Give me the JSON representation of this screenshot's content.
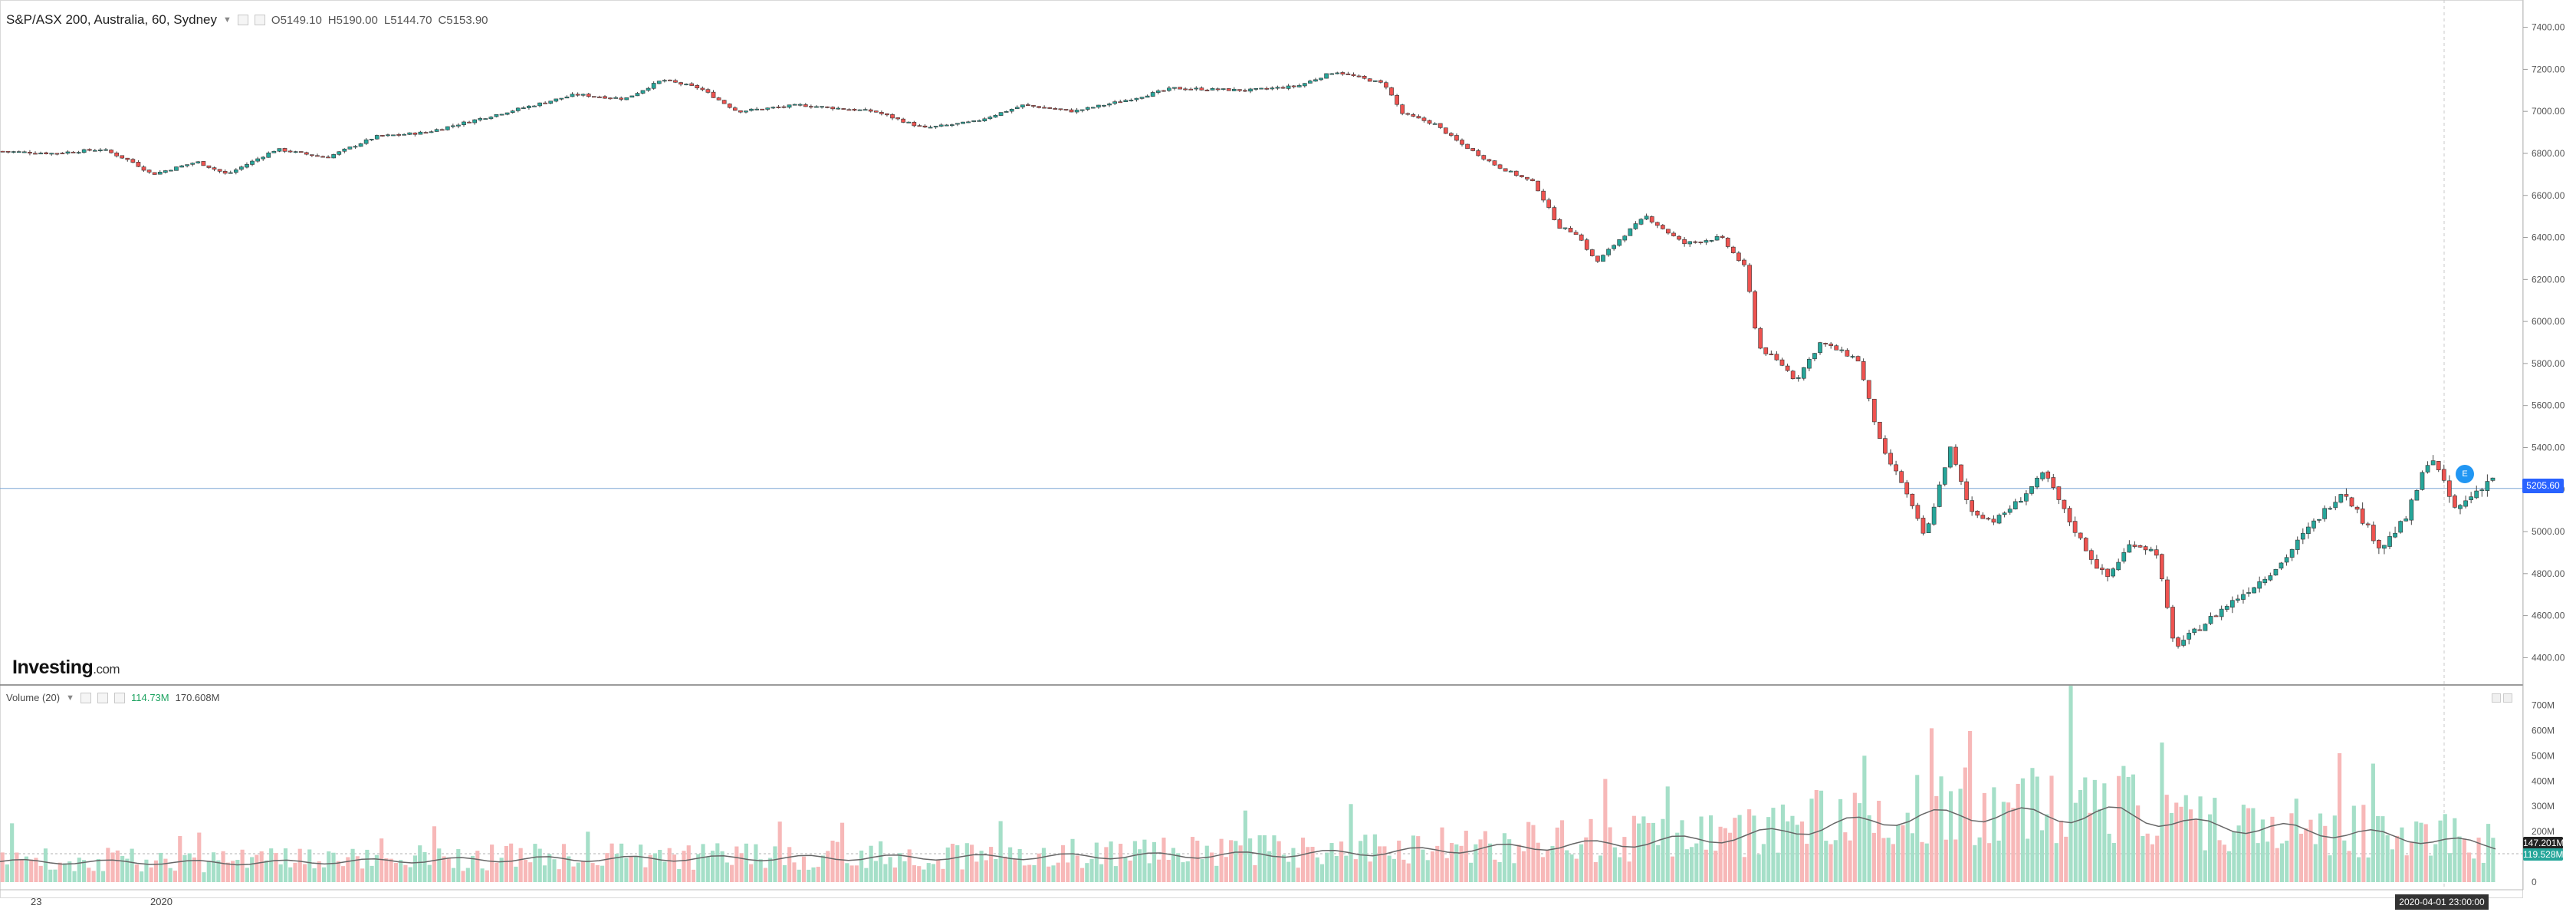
{
  "header": {
    "symbol": "S&P/ASX 200, Australia, 60, Sydney",
    "open_label": "O",
    "open": "5149.10",
    "high_label": "H",
    "high": "5190.00",
    "low_label": "L",
    "low": "5144.70",
    "close_label": "C",
    "close": "5153.90"
  },
  "volume_header": {
    "title": "Volume (20)",
    "value": "114.73M",
    "ma_value": "170.608M"
  },
  "logo": {
    "brand": "Investing",
    "suffix": ".com"
  },
  "price_tag": "5205.60",
  "volume_tag_1": "147.201M",
  "volume_tag_2": "119.528M",
  "date_tag": "2020-04-01 23:00:00",
  "badge": "E",
  "colors": {
    "up": "#26a69a",
    "down": "#ef5350",
    "vol_up": "#a5dfc8",
    "vol_down": "#f7b8b8",
    "ma": "#555555",
    "price_line": "#2962ff"
  },
  "chart_data": {
    "type": "candlestick",
    "price_axis": {
      "ticks": [
        4400,
        4600,
        4800,
        5000,
        5200,
        5400,
        5600,
        5800,
        6000,
        6200,
        6400,
        6600,
        6800,
        7000,
        7200,
        7400
      ],
      "range": [
        4270,
        7530
      ]
    },
    "volume_axis": {
      "ticks_labels": [
        "0",
        "100M",
        "200M",
        "300M",
        "400M",
        "500M",
        "600M",
        "700M"
      ],
      "ticks": [
        0,
        100,
        200,
        300,
        400,
        500,
        600,
        700
      ],
      "range": [
        0,
        750
      ]
    },
    "x_ticks": [
      "23",
      "2020"
    ],
    "current_price": 5205.6,
    "keypoints": [
      [
        0,
        6810
      ],
      [
        0.02,
        6800
      ],
      [
        0.04,
        6820
      ],
      [
        0.052,
        6760
      ],
      [
        0.06,
        6700
      ],
      [
        0.078,
        6760
      ],
      [
        0.09,
        6700
      ],
      [
        0.11,
        6820
      ],
      [
        0.13,
        6780
      ],
      [
        0.15,
        6880
      ],
      [
        0.17,
        6900
      ],
      [
        0.19,
        6960
      ],
      [
        0.21,
        7020
      ],
      [
        0.23,
        7080
      ],
      [
        0.25,
        7060
      ],
      [
        0.265,
        7150
      ],
      [
        0.28,
        7110
      ],
      [
        0.295,
        7000
      ],
      [
        0.32,
        7030
      ],
      [
        0.35,
        7000
      ],
      [
        0.37,
        6920
      ],
      [
        0.39,
        6950
      ],
      [
        0.41,
        7030
      ],
      [
        0.43,
        7000
      ],
      [
        0.45,
        7050
      ],
      [
        0.47,
        7110
      ],
      [
        0.5,
        7100
      ],
      [
        0.52,
        7120
      ],
      [
        0.535,
        7190
      ],
      [
        0.555,
        7130
      ],
      [
        0.562,
        6990
      ],
      [
        0.575,
        6940
      ],
      [
        0.585,
        6850
      ],
      [
        0.6,
        6740
      ],
      [
        0.615,
        6660
      ],
      [
        0.625,
        6450
      ],
      [
        0.632,
        6420
      ],
      [
        0.64,
        6280
      ],
      [
        0.65,
        6400
      ],
      [
        0.66,
        6500
      ],
      [
        0.675,
        6370
      ],
      [
        0.69,
        6400
      ],
      [
        0.7,
        6250
      ],
      [
        0.705,
        5880
      ],
      [
        0.715,
        5790
      ],
      [
        0.72,
        5720
      ],
      [
        0.73,
        5900
      ],
      [
        0.745,
        5820
      ],
      [
        0.755,
        5380
      ],
      [
        0.762,
        5250
      ],
      [
        0.772,
        4970
      ],
      [
        0.782,
        5400
      ],
      [
        0.79,
        5100
      ],
      [
        0.8,
        5050
      ],
      [
        0.81,
        5150
      ],
      [
        0.82,
        5280
      ],
      [
        0.83,
        5050
      ],
      [
        0.84,
        4850
      ],
      [
        0.845,
        4780
      ],
      [
        0.855,
        4950
      ],
      [
        0.865,
        4900
      ],
      [
        0.872,
        4450
      ],
      [
        0.88,
        4520
      ],
      [
        0.89,
        4620
      ],
      [
        0.905,
        4750
      ],
      [
        0.915,
        4850
      ],
      [
        0.925,
        5000
      ],
      [
        0.94,
        5200
      ],
      [
        0.955,
        4920
      ],
      [
        0.965,
        5060
      ],
      [
        0.975,
        5370
      ],
      [
        0.985,
        5100
      ],
      [
        0.995,
        5210
      ],
      [
        1.0,
        5260
      ]
    ],
    "volume_avg_curve": [
      [
        0,
        90
      ],
      [
        0.1,
        85
      ],
      [
        0.2,
        100
      ],
      [
        0.3,
        105
      ],
      [
        0.4,
        110
      ],
      [
        0.5,
        120
      ],
      [
        0.55,
        130
      ],
      [
        0.6,
        150
      ],
      [
        0.65,
        170
      ],
      [
        0.7,
        200
      ],
      [
        0.72,
        230
      ],
      [
        0.76,
        280
      ],
      [
        0.8,
        300
      ],
      [
        0.82,
        290
      ],
      [
        0.85,
        300
      ],
      [
        0.88,
        250
      ],
      [
        0.92,
        230
      ],
      [
        0.96,
        200
      ],
      [
        1.0,
        160
      ]
    ]
  }
}
